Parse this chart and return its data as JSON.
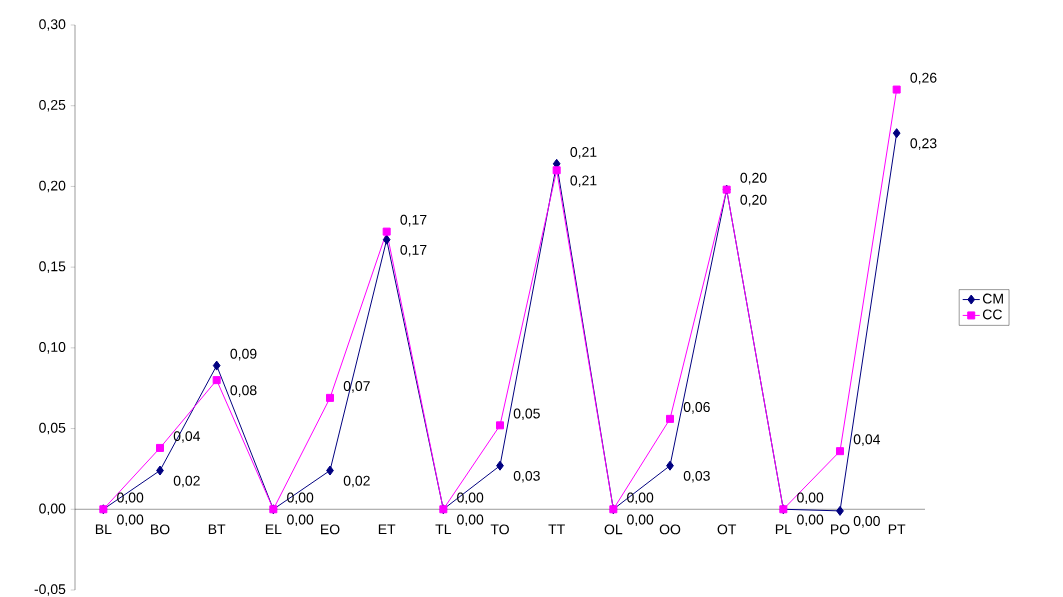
{
  "chart_data": {
    "type": "line",
    "categories": [
      "BL",
      "BO",
      "BT",
      "EL",
      "EO",
      "ET",
      "TL",
      "TO",
      "TT",
      "OL",
      "OO",
      "OT",
      "PL",
      "PO",
      "PT"
    ],
    "series": [
      {
        "name": "CM",
        "color": "#000080",
        "marker": "diamond",
        "values": [
          0,
          0.024,
          0.089,
          0,
          0.024,
          0.167,
          0,
          0.027,
          0.214,
          0,
          0.027,
          0.198,
          0,
          -0.001,
          0.233
        ],
        "value_labels": [
          "0,00",
          "0,02",
          "0,09",
          "0,00",
          "0,02",
          "0,17",
          "0,00",
          "0,03",
          "0,21",
          "0,00",
          "0,03",
          "0,20",
          "0,00",
          "0,00",
          "0,23"
        ]
      },
      {
        "name": "CC",
        "color": "#ff00ff",
        "marker": "square",
        "values": [
          0,
          0.038,
          0.08,
          0,
          0.069,
          0.172,
          0,
          0.052,
          0.21,
          0,
          0.056,
          0.198,
          0,
          0.036,
          0.26
        ],
        "value_labels": [
          "0,00",
          "0,04",
          "0,08",
          "0,00",
          "0,07",
          "0,17",
          "0,00",
          "0,05",
          "0,21",
          "0,00",
          "0,06",
          "0,20",
          "0,00",
          "0,04",
          "0,26"
        ]
      }
    ],
    "ylim": [
      -0.05,
      0.3
    ],
    "yticks": [
      {
        "value": -0.05,
        "label": "-0,05"
      },
      {
        "value": 0,
        "label": "0,00"
      },
      {
        "value": 0.05,
        "label": "0,05"
      },
      {
        "value": 0.1,
        "label": "0,10"
      },
      {
        "value": 0.15,
        "label": "0,15"
      },
      {
        "value": 0.2,
        "label": "0,20"
      },
      {
        "value": 0.25,
        "label": "0,25"
      },
      {
        "value": 0.3,
        "label": "0,30"
      }
    ],
    "grid": false,
    "legend": "right",
    "line_style": "solid"
  }
}
